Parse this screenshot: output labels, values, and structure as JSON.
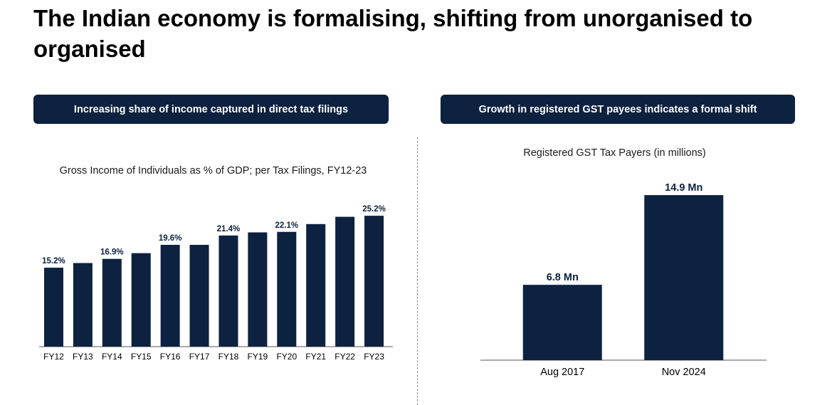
{
  "title": "The Indian economy is formalising, shifting from unorganised to organised",
  "left_panel": {
    "header": "Increasing share of income captured in direct tax filings"
  },
  "right_panel": {
    "header": "Growth in registered GST payees indicates a formal shift"
  },
  "colors": {
    "bar": "#0d2140",
    "header_bg": "#0d2140",
    "axis": "#555555"
  },
  "chart_data": [
    {
      "type": "bar",
      "title": "Gross Income of Individuals as % of GDP; per Tax Filings, FY12-23",
      "categories": [
        "FY12",
        "FY13",
        "FY14",
        "FY15",
        "FY16",
        "FY17",
        "FY18",
        "FY19",
        "FY20",
        "FY21",
        "FY22",
        "FY23"
      ],
      "values": [
        15.2,
        16.1,
        16.9,
        18.0,
        19.6,
        19.6,
        21.4,
        22.0,
        22.1,
        23.6,
        25.0,
        25.2
      ],
      "data_labels": [
        "15.2%",
        "",
        "16.9%",
        "",
        "19.6%",
        "",
        "21.4%",
        "",
        "22.1%",
        "",
        "",
        "25.2%"
      ],
      "xlabel": "",
      "ylabel": "",
      "ylim": [
        0,
        27
      ],
      "grid": false,
      "legend": "none"
    },
    {
      "type": "bar",
      "title": "Registered GST Tax Payers (in millions)",
      "categories": [
        "Aug 2017",
        "Nov 2024"
      ],
      "values": [
        6.8,
        14.9
      ],
      "data_labels": [
        "6.8 Mn",
        "14.9 Mn"
      ],
      "xlabel": "",
      "ylabel": "",
      "ylim": [
        0,
        16
      ],
      "grid": false,
      "legend": "none"
    }
  ]
}
